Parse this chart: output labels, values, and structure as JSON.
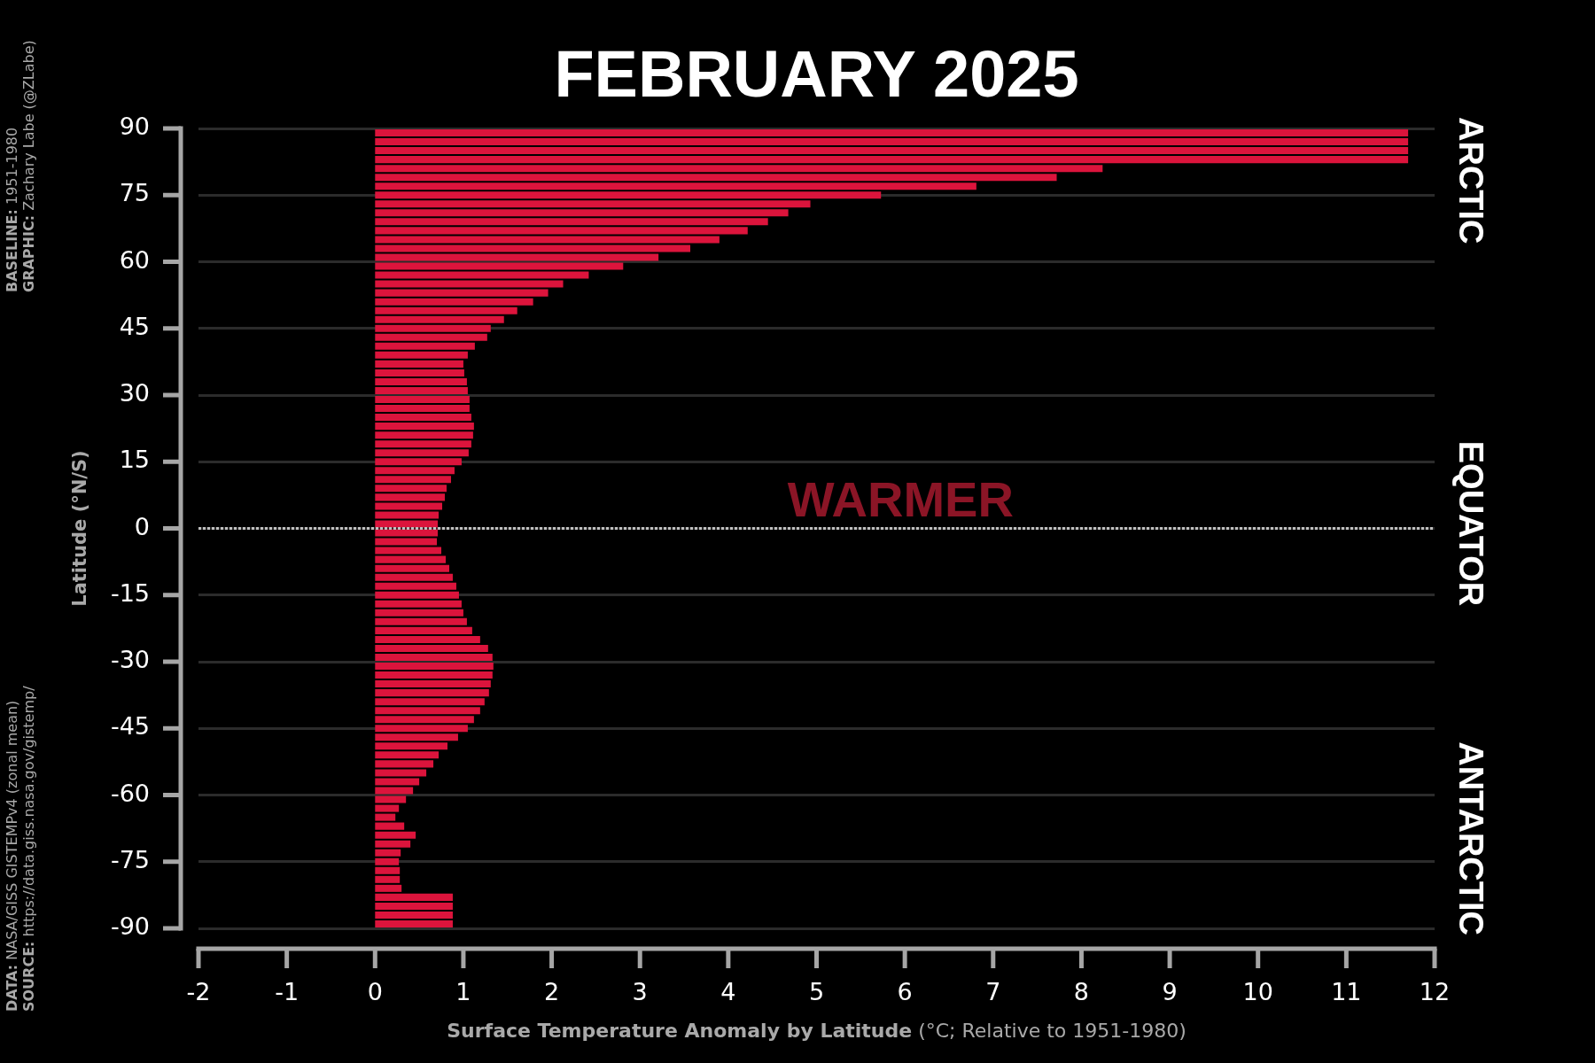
{
  "chart_data": {
    "type": "bar",
    "orientation": "horizontal",
    "title": "FEBRUARY 2025",
    "xlabel": "Surface Temperature Anomaly by Latitude (°C; Relative to 1951-1980)",
    "ylabel": "Latitude (°N/S)",
    "x": [
      89,
      87,
      85,
      83,
      81,
      79,
      77,
      75,
      73,
      71,
      69,
      67,
      65,
      63,
      61,
      59,
      57,
      55,
      53,
      51,
      49,
      47,
      45,
      43,
      41,
      39,
      37,
      35,
      33,
      31,
      29,
      27,
      25,
      23,
      21,
      19,
      17,
      15,
      13,
      11,
      9,
      7,
      5,
      3,
      1,
      -1,
      -3,
      -5,
      -7,
      -9,
      -11,
      -13,
      -15,
      -17,
      -19,
      -21,
      -23,
      -25,
      -27,
      -29,
      -31,
      -33,
      -35,
      -37,
      -39,
      -41,
      -43,
      -45,
      -47,
      -49,
      -51,
      -53,
      -55,
      -57,
      -59,
      -61,
      -63,
      -65,
      -67,
      -69,
      -71,
      -73,
      -75,
      -77,
      -79,
      -81,
      -83,
      -85,
      -87,
      -89
    ],
    "values": [
      11.7,
      11.7,
      11.7,
      11.7,
      8.24,
      7.72,
      6.81,
      5.73,
      4.93,
      4.68,
      4.45,
      4.22,
      3.9,
      3.57,
      3.21,
      2.81,
      2.42,
      2.13,
      1.96,
      1.79,
      1.61,
      1.46,
      1.31,
      1.27,
      1.13,
      1.05,
      1.0,
      1.01,
      1.04,
      1.05,
      1.07,
      1.07,
      1.09,
      1.12,
      1.11,
      1.09,
      1.06,
      0.98,
      0.9,
      0.86,
      0.81,
      0.79,
      0.76,
      0.72,
      0.71,
      0.71,
      0.7,
      0.75,
      0.8,
      0.84,
      0.88,
      0.92,
      0.95,
      0.98,
      1.0,
      1.04,
      1.1,
      1.19,
      1.28,
      1.33,
      1.34,
      1.33,
      1.31,
      1.29,
      1.24,
      1.19,
      1.12,
      1.05,
      0.94,
      0.82,
      0.72,
      0.66,
      0.58,
      0.5,
      0.43,
      0.35,
      0.27,
      0.23,
      0.33,
      0.46,
      0.4,
      0.29,
      0.27,
      0.28,
      0.28,
      0.3,
      0.88,
      0.88,
      0.88,
      0.88
    ],
    "color": "#dc143c",
    "xlim": [
      -2,
      12
    ],
    "xticks": [
      -2,
      -1,
      0,
      1,
      2,
      3,
      4,
      5,
      6,
      7,
      8,
      9,
      10,
      11,
      12
    ],
    "ylim": [
      -90,
      90
    ],
    "yticks": [
      -90,
      -75,
      -60,
      -45,
      -30,
      -15,
      0,
      15,
      30,
      45,
      60,
      75,
      90
    ],
    "grid": "y",
    "ref_lines": [
      {
        "axis": "y",
        "value": 0,
        "color": "#c0c0c0",
        "line_style": "dotted"
      }
    ],
    "annotations": [
      "WARMER",
      "ARCTIC",
      "EQUATOR",
      "ANTARCTIC",
      "BASELINE: 1951-1980",
      "GRAPHIC: Zachary Labe (@ZLabe)",
      "DATA: NASA/GISS GISTEMPv4 (zonal mean)",
      "SOURCE: https://data.giss.nasa.gov/gistemp/"
    ]
  }
}
